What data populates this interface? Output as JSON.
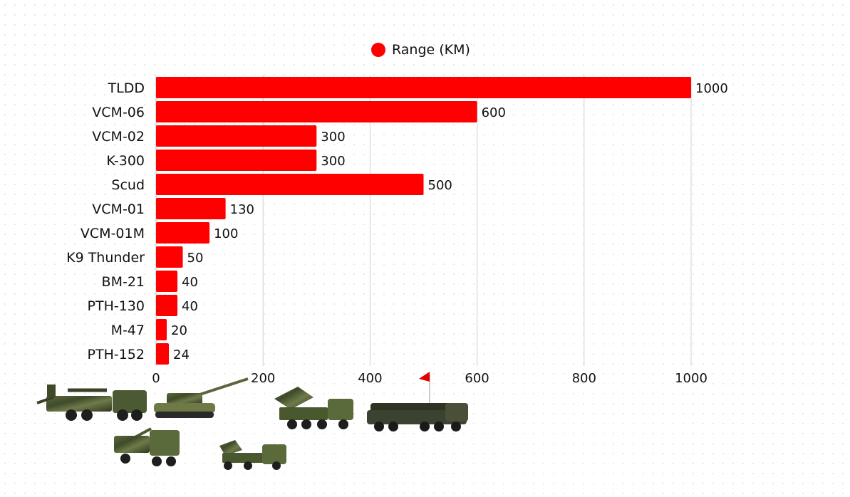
{
  "chart_data": {
    "type": "bar",
    "orientation": "horizontal",
    "series_name": "Range (KM)",
    "categories": [
      "TLDD",
      "VCM-06",
      "VCM-02",
      "K-300",
      "Scud",
      "VCM-01",
      "VCM-01M",
      "K9 Thunder",
      "BM-21",
      "PTH-130",
      "M-47",
      "PTH-152"
    ],
    "values": [
      1000,
      600,
      300,
      300,
      500,
      130,
      100,
      50,
      40,
      40,
      20,
      24
    ],
    "xlim": [
      0,
      1000
    ],
    "xticks": [
      0,
      200,
      400,
      600,
      800,
      1000
    ],
    "grid": true,
    "legend_position": "top-center",
    "bar_color": "#ff0000"
  },
  "legend": {
    "label": "Range (KM)",
    "color": "#ff0000"
  },
  "illustrations": [
    {
      "name": "truck-mounted-howitzer-image"
    },
    {
      "name": "tracked-self-propelled-gun-image"
    },
    {
      "name": "rocket-launcher-truck-image"
    },
    {
      "name": "ballistic-missile-launcher-image"
    },
    {
      "name": "camo-howitzer-truck-image"
    },
    {
      "name": "small-rocket-launcher-truck-image"
    }
  ]
}
